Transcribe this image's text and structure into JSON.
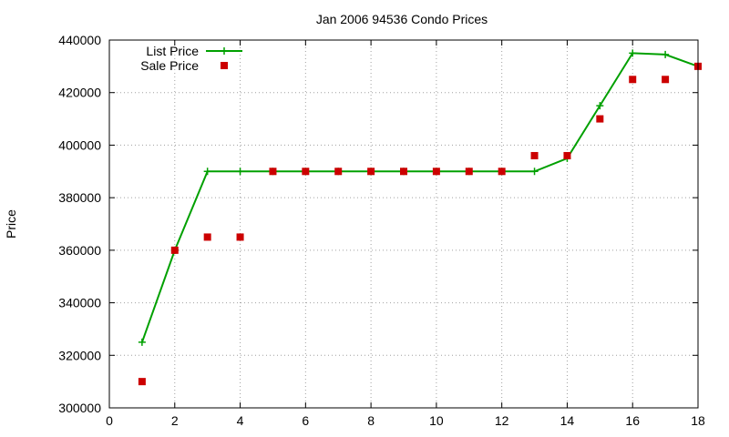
{
  "chart_data": {
    "type": "line",
    "title": "Jan 2006 94536 Condo Prices",
    "xlabel": "",
    "ylabel": "Price",
    "xlim": [
      0,
      18
    ],
    "ylim": [
      300000,
      440000
    ],
    "x_ticks": [
      0,
      2,
      4,
      6,
      8,
      10,
      12,
      14,
      16,
      18
    ],
    "y_ticks": [
      300000,
      320000,
      340000,
      360000,
      380000,
      400000,
      420000,
      440000
    ],
    "grid": true,
    "legend_position": "top-left",
    "series": [
      {
        "name": "List Price",
        "kind": "line",
        "marker": "plus",
        "color": "#00a000",
        "points": [
          [
            1,
            325000
          ],
          [
            2,
            360000
          ],
          [
            3,
            390000
          ],
          [
            4,
            390000
          ],
          [
            5,
            390000
          ],
          [
            6,
            390000
          ],
          [
            7,
            390000
          ],
          [
            8,
            390000
          ],
          [
            9,
            390000
          ],
          [
            10,
            390000
          ],
          [
            11,
            390000
          ],
          [
            12,
            390000
          ],
          [
            13,
            390000
          ],
          [
            14,
            395000
          ],
          [
            15,
            415000
          ],
          [
            16,
            435000
          ],
          [
            17,
            434500
          ],
          [
            18,
            430000
          ]
        ]
      },
      {
        "name": "Sale Price",
        "kind": "scatter",
        "marker": "square",
        "color": "#cc0000",
        "points": [
          [
            1,
            310000
          ],
          [
            2,
            360000
          ],
          [
            3,
            365000
          ],
          [
            4,
            365000
          ],
          [
            5,
            390000
          ],
          [
            6,
            390000
          ],
          [
            7,
            390000
          ],
          [
            8,
            390000
          ],
          [
            9,
            390000
          ],
          [
            10,
            390000
          ],
          [
            11,
            390000
          ],
          [
            12,
            390000
          ],
          [
            13,
            396000
          ],
          [
            14,
            396000
          ],
          [
            15,
            410000
          ],
          [
            16,
            425000
          ],
          [
            17,
            425000
          ],
          [
            18,
            430000
          ]
        ]
      }
    ]
  }
}
